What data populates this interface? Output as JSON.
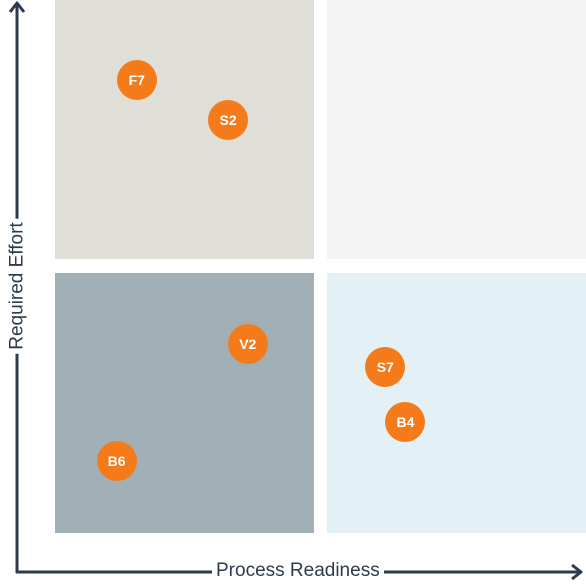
{
  "chart_data": {
    "type": "scatter",
    "title": "",
    "xlabel": "Process Readiness",
    "ylabel": "Required Effort",
    "xlim": [
      0,
      100
    ],
    "ylim": [
      0,
      100
    ],
    "grid": false,
    "quadrants": [
      {
        "id": "low-readiness-high-effort",
        "color": "#dfdfd8"
      },
      {
        "id": "high-readiness-high-effort",
        "color": "#f4f4f4"
      },
      {
        "id": "low-readiness-low-effort",
        "color": "#a1b0b7"
      },
      {
        "id": "high-readiness-low-effort",
        "color": "#e3f0f5"
      }
    ],
    "point_color": "#f47a1a",
    "points": [
      {
        "label": "F7",
        "x": 15.4,
        "y": 85.0
      },
      {
        "label": "S2",
        "x": 32.6,
        "y": 77.4
      },
      {
        "label": "V2",
        "x": 36.3,
        "y": 35.5
      },
      {
        "label": "S7",
        "x": 62.2,
        "y": 31.2
      },
      {
        "label": "B4",
        "x": 66.0,
        "y": 20.8
      },
      {
        "label": "B6",
        "x": 11.6,
        "y": 13.5
      }
    ]
  }
}
